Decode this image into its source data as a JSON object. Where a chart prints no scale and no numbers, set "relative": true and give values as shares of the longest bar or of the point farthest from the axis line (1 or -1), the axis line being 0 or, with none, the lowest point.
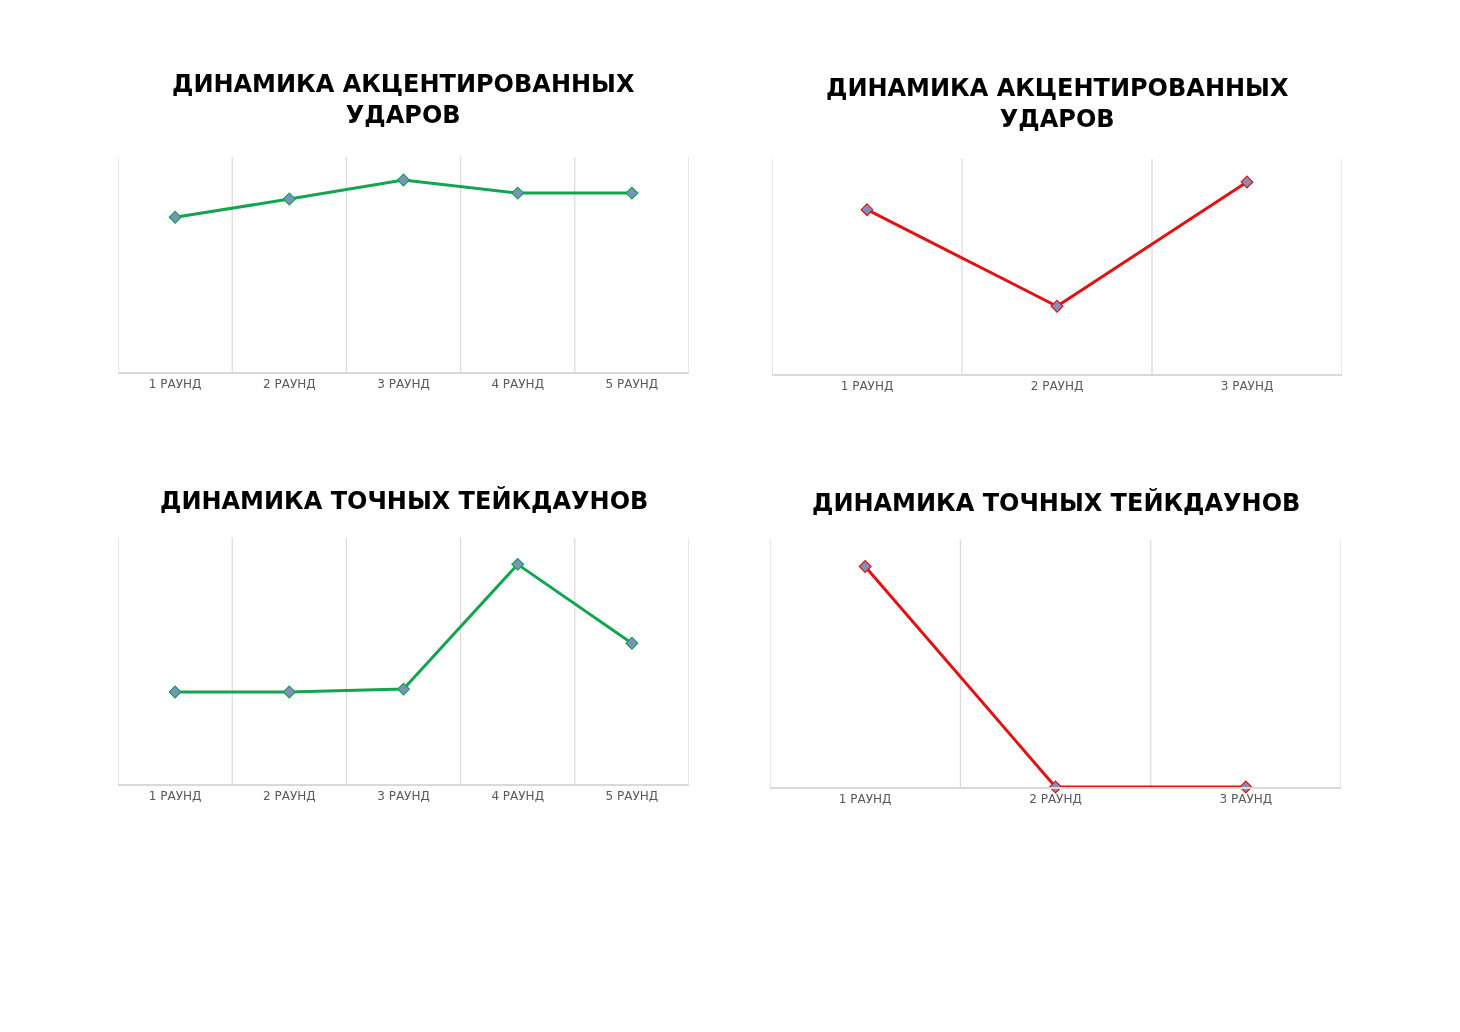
{
  "chart_data": [
    {
      "type": "line",
      "title": "ДИНАМИКА АКЦЕНТИРОВАННЫХ\nУДАРОВ",
      "categories": [
        "1 РАУНД",
        "2 РАУНД",
        "3 РАУНД",
        "4 РАУНД",
        "5 РАУНД"
      ],
      "relative": true,
      "marker": "diamond",
      "grid": "x",
      "series": [
        {
          "color": "#12a54f",
          "values": [
            0.806,
            0.901,
            1,
            0.932,
            0.932
          ]
        }
      ]
    },
    {
      "type": "line",
      "title": "ДИНАМИКА АКЦЕНТИРОВАННЫХ\nУДАРОВ",
      "categories": [
        "1 РАУНД",
        "2 РАУНД",
        "3 РАУНД"
      ],
      "relative": true,
      "marker": "diamond",
      "grid": "x",
      "series": [
        {
          "color": "#e01212",
          "values": [
            0.856,
            0.353,
            1
          ]
        }
      ]
    },
    {
      "type": "line",
      "title": "ДИНАМИКА ТОЧНЫХ ТЕЙКДАУНОВ",
      "categories": [
        "1 РАУНД",
        "2 РАУНД",
        "3 РАУНД",
        "4 РАУНД",
        "5 РАУНД"
      ],
      "relative": true,
      "marker": "diamond",
      "grid": "x",
      "series": [
        {
          "color": "#12a54f",
          "values": [
            0.419,
            0.419,
            0.432,
            1,
            0.641
          ]
        }
      ]
    },
    {
      "type": "line",
      "title": "ДИНАМИКА ТОЧНЫХ ТЕЙКДАУНОВ",
      "categories": [
        "1 РАУНД",
        "2 РАУНД",
        "3 РАУНД"
      ],
      "relative": true,
      "marker": "diamond",
      "grid": "x",
      "series": [
        {
          "color": "#e01212",
          "values": [
            1,
            0,
            0
          ]
        }
      ]
    }
  ]
}
